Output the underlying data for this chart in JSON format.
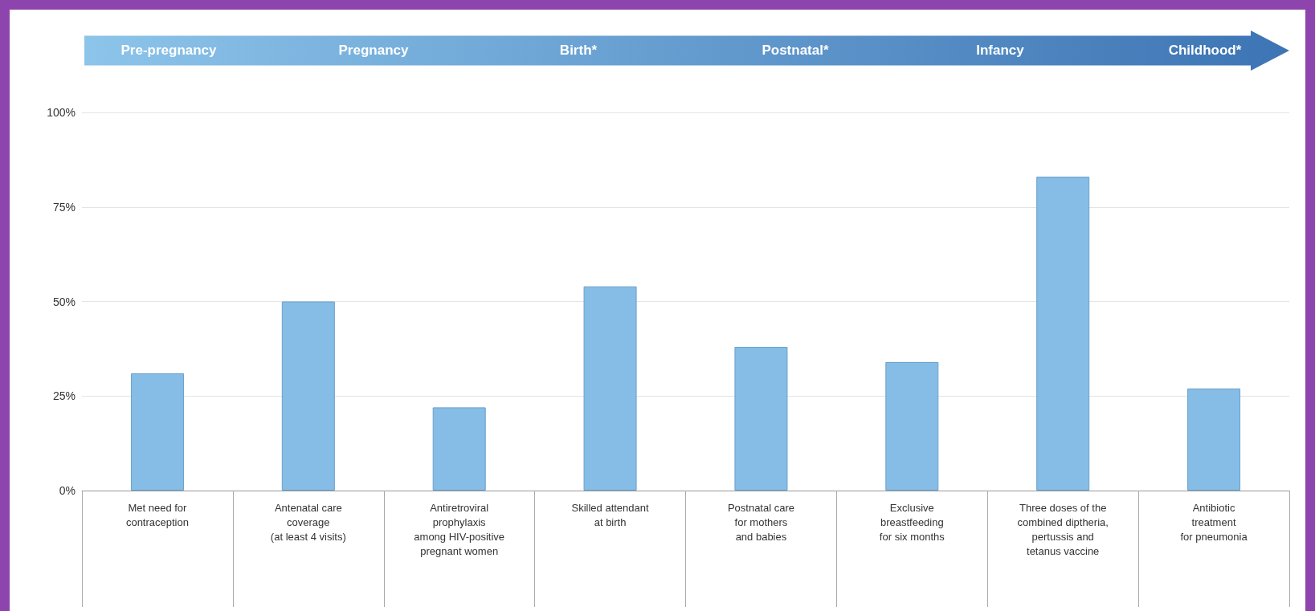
{
  "chart_data": {
    "type": "bar",
    "annotations": [
      "Pre-pregnancy",
      "Pregnancy",
      "Birth*",
      "Postnatal*",
      "Infancy",
      "Childhood*"
    ],
    "categories": [
      "Met need for\ncontraception",
      "Antenatal care\ncoverage\n(at least 4 visits)",
      "Antiretroviral\nprophylaxis\namong HIV-positive\npregnant women",
      "Skilled attendant\nat birth",
      "Postnatal care\nfor mothers\nand babies",
      "Exclusive\nbreastfeeding\nfor six months",
      "Three doses of the\ncombined diptheria,\npertussis and\ntetanus vaccine",
      "Antibiotic\ntreatment\nfor pneumonia"
    ],
    "values": [
      31,
      50,
      22,
      54,
      38,
      34,
      83,
      27
    ],
    "color": "#85bde6",
    "ylim": [
      0,
      100
    ],
    "yticks": [
      {
        "value": 0,
        "label": "0%"
      },
      {
        "value": 25,
        "label": "25%"
      },
      {
        "value": 50,
        "label": "50%"
      },
      {
        "value": 75,
        "label": "75%"
      },
      {
        "value": 100,
        "label": "100%"
      }
    ],
    "grid": "y"
  }
}
